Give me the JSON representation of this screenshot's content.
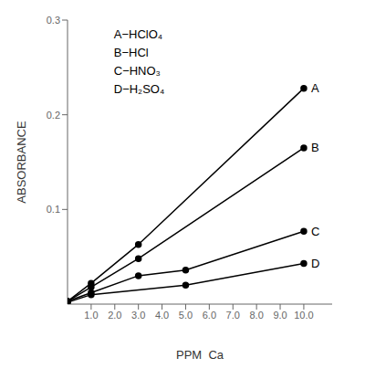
{
  "chart_data": {
    "type": "line",
    "xlabel": "PPM  Ca",
    "ylabel": "ABSORBANCE",
    "series": [
      {
        "name": "A",
        "x": [
          0,
          1,
          3,
          10
        ],
        "values": [
          0.003,
          0.022,
          0.063,
          0.228
        ]
      },
      {
        "name": "B",
        "x": [
          0,
          1,
          3,
          10
        ],
        "values": [
          0.003,
          0.018,
          0.048,
          0.165
        ]
      },
      {
        "name": "C",
        "x": [
          0,
          1,
          3,
          5,
          10
        ],
        "values": [
          0.003,
          0.012,
          0.03,
          0.036,
          0.077
        ]
      },
      {
        "name": "D",
        "x": [
          0,
          1,
          5,
          10
        ],
        "values": [
          0.002,
          0.01,
          0.02,
          0.043
        ]
      }
    ],
    "color": "#000000",
    "marker": "circle",
    "xlim": [
      0,
      11.2
    ],
    "ylim": [
      0,
      0.3
    ],
    "xticks": [
      {
        "value": 1,
        "label": "1.0"
      },
      {
        "value": 2,
        "label": "2.0"
      },
      {
        "value": 3,
        "label": "3.0"
      },
      {
        "value": 4,
        "label": "4.0"
      },
      {
        "value": 5,
        "label": "5.0"
      },
      {
        "value": 6,
        "label": "6.0"
      },
      {
        "value": 7,
        "label": "7.0"
      },
      {
        "value": 8,
        "label": "8.0"
      },
      {
        "value": 9,
        "label": "9.0"
      },
      {
        "value": 10,
        "label": "10.0"
      }
    ],
    "yticks": [
      0.1,
      0.2,
      0.3
    ],
    "annotations": [
      "A−HClO₄",
      "B−HCl",
      "C−HNO₃",
      "D−H₂SO₄"
    ],
    "grid": false
  }
}
